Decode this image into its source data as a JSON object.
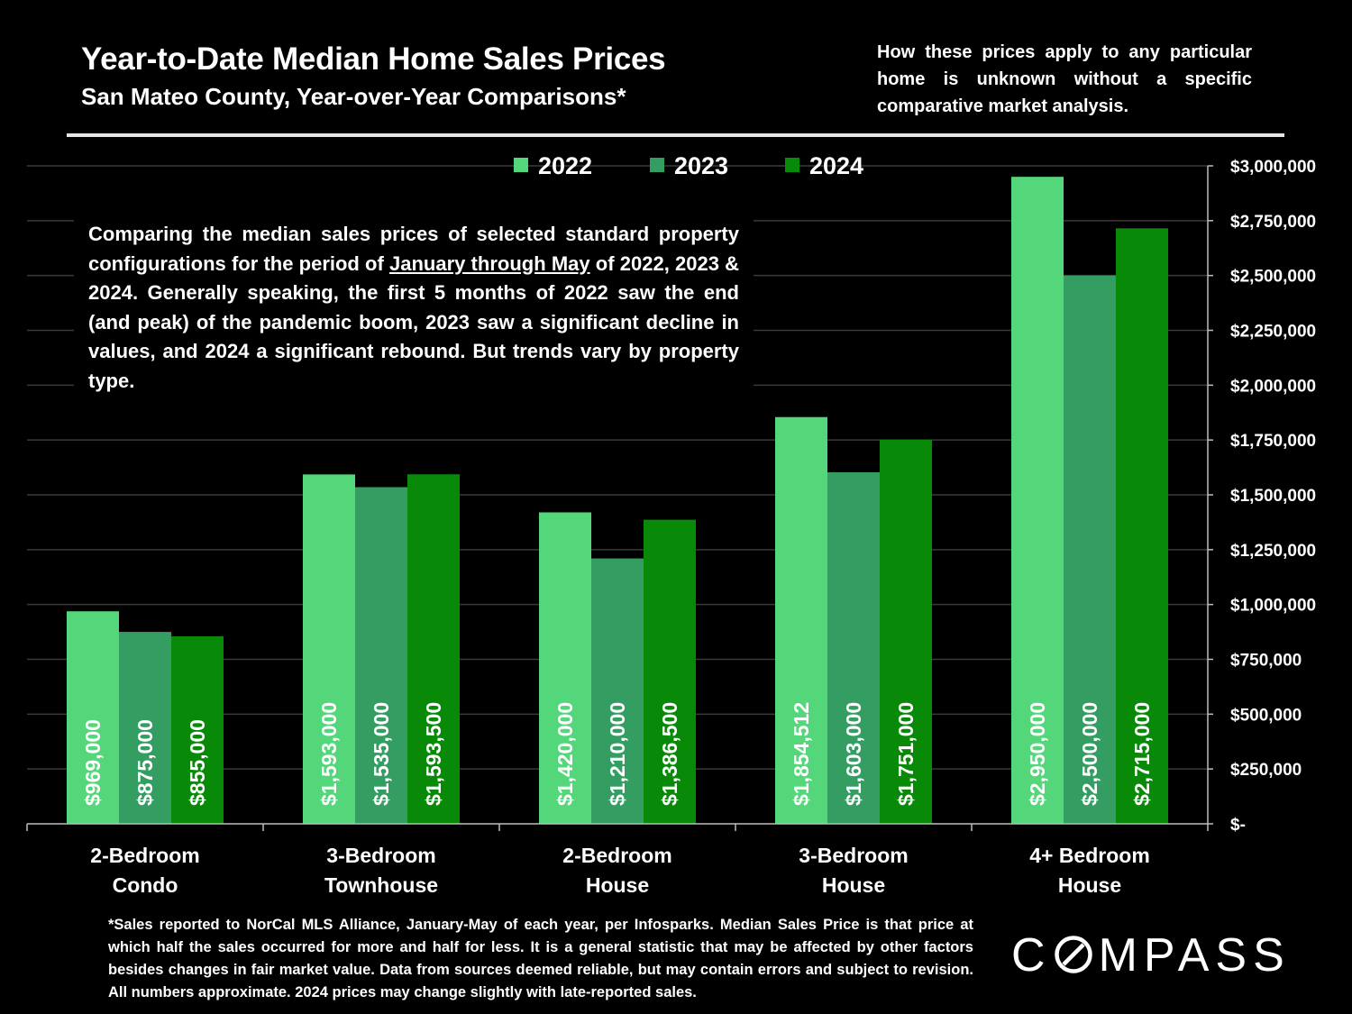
{
  "header": {
    "title": "Year-to-Date Median Home Sales Prices",
    "subtitle": "San Mateo County, Year-over-Year Comparisons*",
    "disclaimer": "How these prices apply to any particular home is unknown without a specific comparative market analysis."
  },
  "description": {
    "part1": "Comparing the median sales prices of selected standard property configurations for the period of ",
    "underlined": "January through May",
    "part2": " of 2022, 2023 & 2024. Generally speaking, the first 5 months of 2022 saw the end (and peak) of the pandemic boom, 2023 saw a significant decline in values, and 2024 a significant rebound. But trends vary by property type."
  },
  "footnote": "*Sales reported to NorCal MLS Alliance, January-May of each year, per Infosparks. Median Sales Price is that price at which half the sales occurred for more and half for less. It is a general statistic that may be affected by other factors besides changes in fair market value. Data from sources deemed reliable, but may contain errors and subject to revision.  All numbers approximate. 2024 prices may change slightly with late-reported sales.",
  "brand": {
    "left": "C",
    "right": "MPASS"
  },
  "chart_data": {
    "type": "bar",
    "categories": [
      [
        "2-Bedroom",
        "Condo"
      ],
      [
        "3-Bedroom",
        "Townhouse"
      ],
      [
        "2-Bedroom",
        "House"
      ],
      [
        "3-Bedroom",
        "House"
      ],
      [
        "4+ Bedroom",
        "House"
      ]
    ],
    "series": [
      {
        "name": "2022",
        "color": "#54d67a",
        "values": [
          969000,
          1593000,
          1420000,
          1854512,
          2950000
        ],
        "labels": [
          "$969,000",
          "$1,593,000",
          "$1,420,000",
          "$1,854,512",
          "$2,950,000"
        ]
      },
      {
        "name": "2023",
        "color": "#349d62",
        "values": [
          875000,
          1535000,
          1210000,
          1603000,
          2500000
        ],
        "labels": [
          "$875,000",
          "$1,535,000",
          "$1,210,000",
          "$1,603,000",
          "$2,500,000"
        ]
      },
      {
        "name": "2024",
        "color": "#088a08",
        "values": [
          855000,
          1593500,
          1386500,
          1751000,
          2715000
        ],
        "labels": [
          "$855,000",
          "$1,593,500",
          "$1,386,500",
          "$1,751,000",
          "$2,715,000"
        ]
      }
    ],
    "ylim": [
      0,
      3000000
    ],
    "yticks": [
      0,
      250000,
      500000,
      750000,
      1000000,
      1250000,
      1500000,
      1750000,
      2000000,
      2250000,
      2500000,
      2750000,
      3000000
    ],
    "ytick_labels": [
      "$-",
      "$250,000",
      "$500,000",
      "$750,000",
      "$1,000,000",
      "$1,250,000",
      "$1,500,000",
      "$1,750,000",
      "$2,000,000",
      "$2,250,000",
      "$2,500,000",
      "$2,750,000",
      "$3,000,000"
    ],
    "y_axis_side": "right",
    "grid": true,
    "legend": "top-center"
  }
}
